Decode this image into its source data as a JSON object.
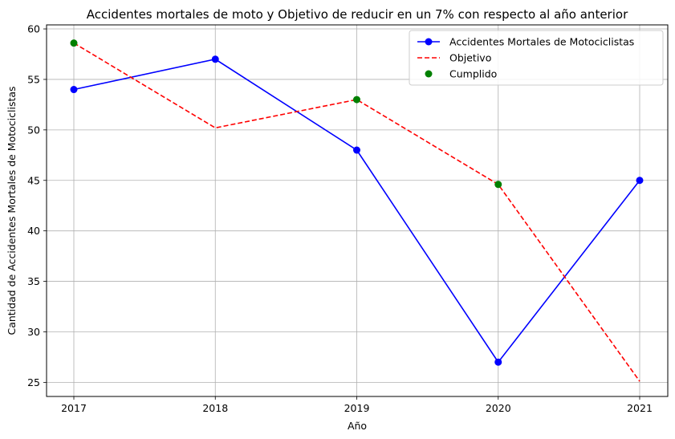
{
  "chart_data": {
    "type": "line",
    "title": "Accidentes mortales de moto y Objetivo de reducir en un 7% con respecto al año anterior",
    "xlabel": "Año",
    "ylabel": "Cantidad de Accidentes Mortales de Motociclistas",
    "categories": [
      "2017",
      "2018",
      "2019",
      "2020",
      "2021"
    ],
    "ylim": [
      23.6,
      60.4
    ],
    "yticks": [
      "25",
      "30",
      "35",
      "40",
      "45",
      "50",
      "55",
      "60"
    ],
    "grid": true,
    "legend_position": "top-right",
    "series": [
      {
        "name": "Accidentes Mortales de Motociclistas",
        "style": "solid-line-with-circle-markers",
        "color": "#0000ff",
        "values": [
          54,
          57,
          48,
          27,
          45
        ]
      },
      {
        "name": "Objetivo",
        "style": "dashed-line",
        "color": "#ff0000",
        "values": [
          58.6,
          50.2,
          53.0,
          44.6,
          25.1
        ]
      },
      {
        "name": "Cumplido",
        "style": "scatter",
        "color": "#008000",
        "points": [
          {
            "x": "2017",
            "y": 58.6
          },
          {
            "x": "2019",
            "y": 53.0
          },
          {
            "x": "2020",
            "y": 44.6
          }
        ]
      }
    ]
  }
}
